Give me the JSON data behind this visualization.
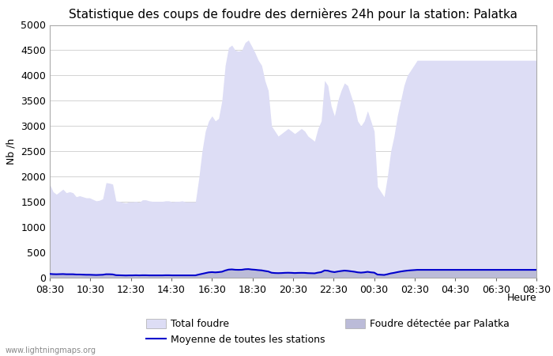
{
  "title": "Statistique des coups de foudre des dernières 24h pour la station: Palatka",
  "ylabel": "Nb /h",
  "xlabel": "Heure",
  "watermark": "www.lightningmaps.org",
  "ylim": [
    0,
    5000
  ],
  "yticks": [
    0,
    500,
    1000,
    1500,
    2000,
    2500,
    3000,
    3500,
    4000,
    4500,
    5000
  ],
  "xtick_labels": [
    "08:30",
    "10:30",
    "12:30",
    "14:30",
    "16:30",
    "18:30",
    "20:30",
    "22:30",
    "00:30",
    "02:30",
    "04:30",
    "06:30",
    "08:30"
  ],
  "legend_total": "Total foudre",
  "legend_palatka": "Foudre détectée par Palatka",
  "legend_moyenne": "Moyenne de toutes les stations",
  "color_total": "#ddddf5",
  "color_palatka": "#bbbbd8",
  "color_moyenne": "#0000cc",
  "background_color": "#ffffff",
  "title_fontsize": 11,
  "tick_fontsize": 9,
  "label_fontsize": 9,
  "total_foudre": [
    1850,
    1700,
    1650,
    1700,
    1750,
    1680,
    1700,
    1680,
    1600,
    1620,
    1600,
    1580,
    1580,
    1550,
    1520,
    1530,
    1560,
    1880,
    1870,
    1850,
    1520,
    1510,
    1490,
    1480,
    1500,
    1500,
    1510,
    1490,
    1540,
    1540,
    1520,
    1510,
    1510,
    1510,
    1510,
    1520,
    1520,
    1500,
    1510,
    1510,
    1520,
    1500,
    1500,
    1500,
    1500,
    1950,
    2500,
    2900,
    3100,
    3200,
    3100,
    3150,
    3500,
    4200,
    4550,
    4600,
    4500,
    4480,
    4500,
    4650,
    4700,
    4580,
    4450,
    4300,
    4200,
    3900,
    3700,
    3000,
    2900,
    2800,
    2850,
    2900,
    2950,
    2900,
    2850,
    2900,
    2950,
    2900,
    2800,
    2750,
    2700,
    2950,
    3100,
    3900,
    3800,
    3400,
    3200,
    3500,
    3700,
    3850,
    3800,
    3600,
    3400,
    3100,
    3000,
    3100,
    3300,
    3100,
    2900,
    1800,
    1700,
    1600,
    2000,
    2500,
    2800,
    3200,
    3500,
    3800,
    4000,
    4100,
    4200,
    4300,
    4300,
    4300,
    4300,
    4300,
    4300,
    4300,
    4300,
    4300,
    4300,
    4300,
    4300,
    4300,
    4300,
    4300,
    4300,
    4300,
    4300,
    4300,
    4300,
    4300,
    4300,
    4300,
    4300,
    4300,
    4300,
    4300,
    4300,
    4300,
    4300,
    4300,
    4300,
    4300,
    4300,
    4300,
    4300,
    4300
  ],
  "palatka": [
    80,
    75,
    72,
    75,
    78,
    72,
    72,
    72,
    68,
    68,
    65,
    63,
    63,
    60,
    58,
    60,
    62,
    72,
    72,
    70,
    55,
    52,
    50,
    48,
    50,
    50,
    52,
    50,
    52,
    52,
    50,
    50,
    50,
    50,
    50,
    52,
    52,
    50,
    50,
    50,
    50,
    50,
    50,
    50,
    50,
    65,
    80,
    95,
    110,
    115,
    110,
    115,
    125,
    150,
    168,
    172,
    165,
    163,
    165,
    175,
    178,
    170,
    165,
    158,
    152,
    140,
    130,
    105,
    98,
    95,
    98,
    102,
    105,
    102,
    98,
    100,
    102,
    100,
    95,
    92,
    90,
    105,
    115,
    150,
    145,
    125,
    115,
    128,
    138,
    148,
    142,
    132,
    125,
    112,
    105,
    112,
    122,
    112,
    105,
    65,
    62,
    58,
    72,
    90,
    100,
    115,
    128,
    138,
    148,
    153,
    158,
    163,
    163,
    163,
    163,
    163,
    163,
    163,
    163,
    163,
    163,
    163,
    163,
    163,
    163,
    163,
    163,
    163,
    163,
    163,
    163,
    163,
    163,
    163,
    163,
    163,
    163,
    163,
    163,
    163,
    163,
    163,
    163,
    163,
    163,
    163,
    163,
    163
  ],
  "moyenne": [
    75,
    70,
    68,
    70,
    72,
    68,
    68,
    68,
    63,
    63,
    60,
    58,
    58,
    55,
    53,
    55,
    58,
    68,
    68,
    65,
    50,
    48,
    46,
    44,
    46,
    46,
    48,
    46,
    48,
    48,
    46,
    46,
    46,
    46,
    46,
    48,
    48,
    46,
    46,
    46,
    46,
    46,
    46,
    46,
    46,
    62,
    76,
    90,
    105,
    110,
    105,
    110,
    118,
    142,
    160,
    164,
    157,
    155,
    157,
    167,
    170,
    162,
    157,
    150,
    145,
    133,
    123,
    98,
    92,
    90,
    92,
    96,
    98,
    96,
    92,
    95,
    96,
    95,
    90,
    88,
    86,
    100,
    110,
    143,
    138,
    120,
    110,
    122,
    132,
    140,
    135,
    126,
    118,
    106,
    100,
    106,
    116,
    106,
    100,
    62,
    58,
    54,
    68,
    85,
    96,
    110,
    122,
    132,
    140,
    146,
    150,
    155,
    155,
    155,
    155,
    155,
    155,
    155,
    155,
    155,
    155,
    155,
    155,
    155,
    155,
    155,
    155,
    155,
    155,
    155,
    155,
    155,
    155,
    155,
    155,
    155,
    155,
    155,
    155,
    155,
    155,
    155,
    155,
    155,
    155,
    155,
    155,
    155
  ],
  "n_points": 148
}
